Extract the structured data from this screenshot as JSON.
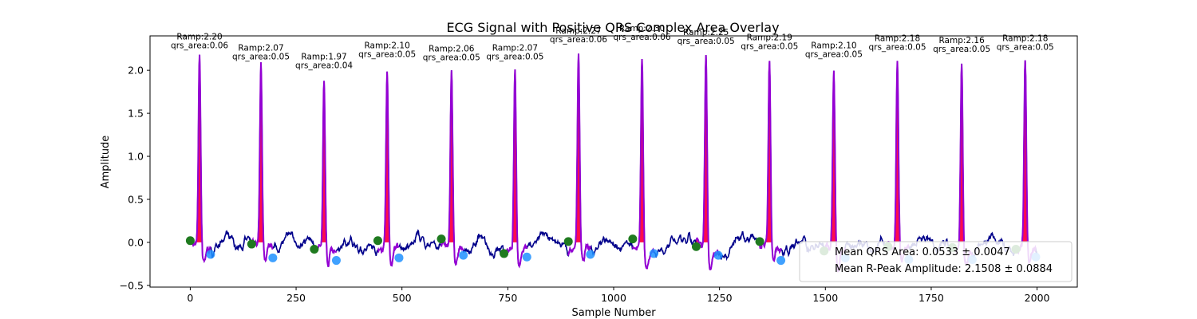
{
  "chart_data": {
    "type": "line",
    "title": "ECG Signal with Positive QRS Complex Area Overlay",
    "xlabel": "Sample Number",
    "ylabel": "Amplitude",
    "xlim": [
      -95,
      2095
    ],
    "ylim": [
      -0.52,
      2.4
    ],
    "xticks": [
      0,
      250,
      500,
      750,
      1000,
      1250,
      1500,
      1750,
      2000
    ],
    "yticks": [
      -0.5,
      0.0,
      0.5,
      1.0,
      1.5,
      2.0
    ],
    "grid": false,
    "colors": {
      "signal": "#00008b",
      "qrs_line": "#9400d3",
      "qrs_fill": "#ff0040",
      "q_marker": "#1f7a1f",
      "s_marker": "#1e90ff"
    },
    "beats": [
      {
        "r": 22,
        "ramp": 2.2,
        "area_label": "Ramp:2.20",
        "qrs_label": "qrs_area:0.06",
        "q": [
          0,
          0.02
        ],
        "s": [
          48,
          -0.14
        ]
      },
      {
        "r": 167,
        "ramp": 2.07,
        "area_label": "Ramp:2.07",
        "qrs_label": "qrs_area:0.05",
        "q": [
          145,
          -0.02
        ],
        "s": [
          195,
          -0.18
        ]
      },
      {
        "r": 316,
        "ramp": 1.97,
        "area_label": "Ramp:1.97",
        "qrs_label": "qrs_area:0.04",
        "q": [
          293,
          -0.08
        ],
        "s": [
          345,
          -0.21
        ]
      },
      {
        "r": 465,
        "ramp": 2.1,
        "area_label": "Ramp:2.10",
        "qrs_label": "qrs_area:0.05",
        "q": [
          443,
          0.02
        ],
        "s": [
          493,
          -0.18
        ]
      },
      {
        "r": 617,
        "ramp": 2.06,
        "area_label": "Ramp:2.06",
        "qrs_label": "qrs_area:0.05",
        "q": [
          593,
          0.04
        ],
        "s": [
          645,
          -0.15
        ]
      },
      {
        "r": 767,
        "ramp": 2.07,
        "area_label": "Ramp:2.07",
        "qrs_label": "qrs_area:0.05",
        "q": [
          741,
          -0.13
        ],
        "s": [
          795,
          -0.17
        ]
      },
      {
        "r": 917,
        "ramp": 2.27,
        "area_label": "Ramp:2.27",
        "qrs_label": "qrs_area:0.06",
        "q": [
          893,
          0.01
        ],
        "s": [
          945,
          -0.14
        ]
      },
      {
        "r": 1067,
        "ramp": 2.3,
        "area_label": "Ramp:2.30",
        "qrs_label": "qrs_area:0.06",
        "q": [
          1045,
          0.04
        ],
        "s": [
          1095,
          -0.13
        ]
      },
      {
        "r": 1218,
        "ramp": 2.25,
        "area_label": "Ramp:2.25",
        "qrs_label": "qrs_area:0.05",
        "q": [
          1195,
          -0.05
        ],
        "s": [
          1247,
          -0.15
        ]
      },
      {
        "r": 1368,
        "ramp": 2.19,
        "area_label": "Ramp:2.19",
        "qrs_label": "qrs_area:0.05",
        "q": [
          1345,
          0.01
        ],
        "s": [
          1395,
          -0.21
        ]
      },
      {
        "r": 1520,
        "ramp": 2.1,
        "area_label": "Ramp:2.10",
        "qrs_label": "qrs_area:0.05",
        "q": [
          1497,
          -0.1
        ],
        "s": [
          1547,
          -0.18
        ]
      },
      {
        "r": 1670,
        "ramp": 2.18,
        "area_label": "Ramp:2.18",
        "qrs_label": "qrs_area:0.05",
        "q": [
          1648,
          -0.05
        ],
        "s": [
          1697,
          -0.2
        ]
      },
      {
        "r": 1822,
        "ramp": 2.16,
        "area_label": "Ramp:2.16",
        "qrs_label": "qrs_area:0.05",
        "q": [
          1800,
          -0.06
        ],
        "s": [
          1847,
          -0.2
        ]
      },
      {
        "r": 1972,
        "ramp": 2.18,
        "area_label": "Ramp:2.18",
        "qrs_label": "qrs_area:0.05",
        "q": [
          1950,
          -0.08
        ],
        "s": [
          1997,
          -0.17
        ]
      }
    ],
    "legend": {
      "placement": "lower-right",
      "entries": [
        "Mean QRS Area: 0.0533 ± 0.0047",
        "Mean R-Peak Amplitude: 2.1508 ± 0.0884"
      ]
    }
  }
}
